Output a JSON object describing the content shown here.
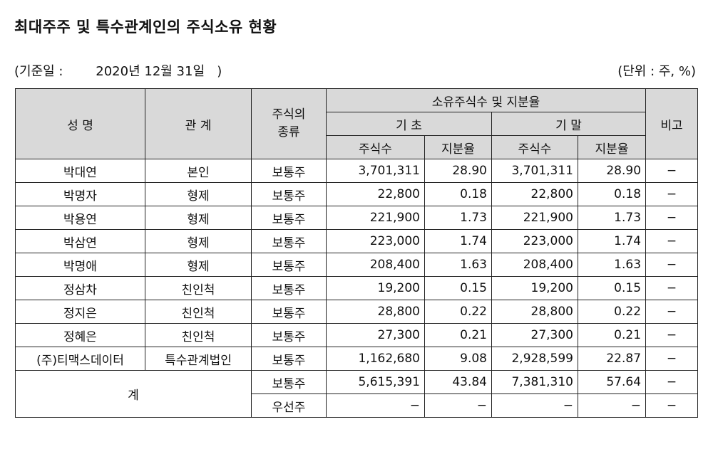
{
  "title": "최대주주 및 특수관계인의 주식소유 현황",
  "basis": {
    "prefix": "(기준일 :",
    "date": "2020년 12월 31일",
    "suffix": ")"
  },
  "unit": "(단위 : 주, %)",
  "headers": {
    "name": "성 명",
    "relation": "관 계",
    "stock_type": "주식의\n종류",
    "ownership": "소유주식수 및 지분율",
    "begin": "기 초",
    "end": "기 말",
    "shares": "주식수",
    "ratio": "지분율",
    "remark": "비고"
  },
  "rows": [
    {
      "name": "박대연",
      "relation": "본인",
      "type": "보통주",
      "b_shares": "3,701,311",
      "b_ratio": "28.90",
      "e_shares": "3,701,311",
      "e_ratio": "28.90",
      "remark": "−"
    },
    {
      "name": "박명자",
      "relation": "형제",
      "type": "보통주",
      "b_shares": "22,800",
      "b_ratio": "0.18",
      "e_shares": "22,800",
      "e_ratio": "0.18",
      "remark": "−"
    },
    {
      "name": "박용연",
      "relation": "형제",
      "type": "보통주",
      "b_shares": "221,900",
      "b_ratio": "1.73",
      "e_shares": "221,900",
      "e_ratio": "1.73",
      "remark": "−"
    },
    {
      "name": "박삼연",
      "relation": "형제",
      "type": "보통주",
      "b_shares": "223,000",
      "b_ratio": "1.74",
      "e_shares": "223,000",
      "e_ratio": "1.74",
      "remark": "−"
    },
    {
      "name": "박명애",
      "relation": "형제",
      "type": "보통주",
      "b_shares": "208,400",
      "b_ratio": "1.63",
      "e_shares": "208,400",
      "e_ratio": "1.63",
      "remark": "−"
    },
    {
      "name": "정삼차",
      "relation": "친인척",
      "type": "보통주",
      "b_shares": "19,200",
      "b_ratio": "0.15",
      "e_shares": "19,200",
      "e_ratio": "0.15",
      "remark": "−"
    },
    {
      "name": "정지은",
      "relation": "친인척",
      "type": "보통주",
      "b_shares": "28,800",
      "b_ratio": "0.22",
      "e_shares": "28,800",
      "e_ratio": "0.22",
      "remark": "−"
    },
    {
      "name": "정혜은",
      "relation": "친인척",
      "type": "보통주",
      "b_shares": "27,300",
      "b_ratio": "0.21",
      "e_shares": "27,300",
      "e_ratio": "0.21",
      "remark": "−"
    },
    {
      "name": "(주)티맥스데이터",
      "relation": "특수관계법인",
      "type": "보통주",
      "b_shares": "1,162,680",
      "b_ratio": "9.08",
      "e_shares": "2,928,599",
      "e_ratio": "22.87",
      "remark": "−"
    }
  ],
  "total": {
    "label": "계",
    "rows": [
      {
        "type": "보통주",
        "b_shares": "5,615,391",
        "b_ratio": "43.84",
        "e_shares": "7,381,310",
        "e_ratio": "57.64",
        "remark": "−"
      },
      {
        "type": "우선주",
        "b_shares": "−",
        "b_ratio": "−",
        "e_shares": "−",
        "e_ratio": "−",
        "remark": "−"
      }
    ]
  }
}
